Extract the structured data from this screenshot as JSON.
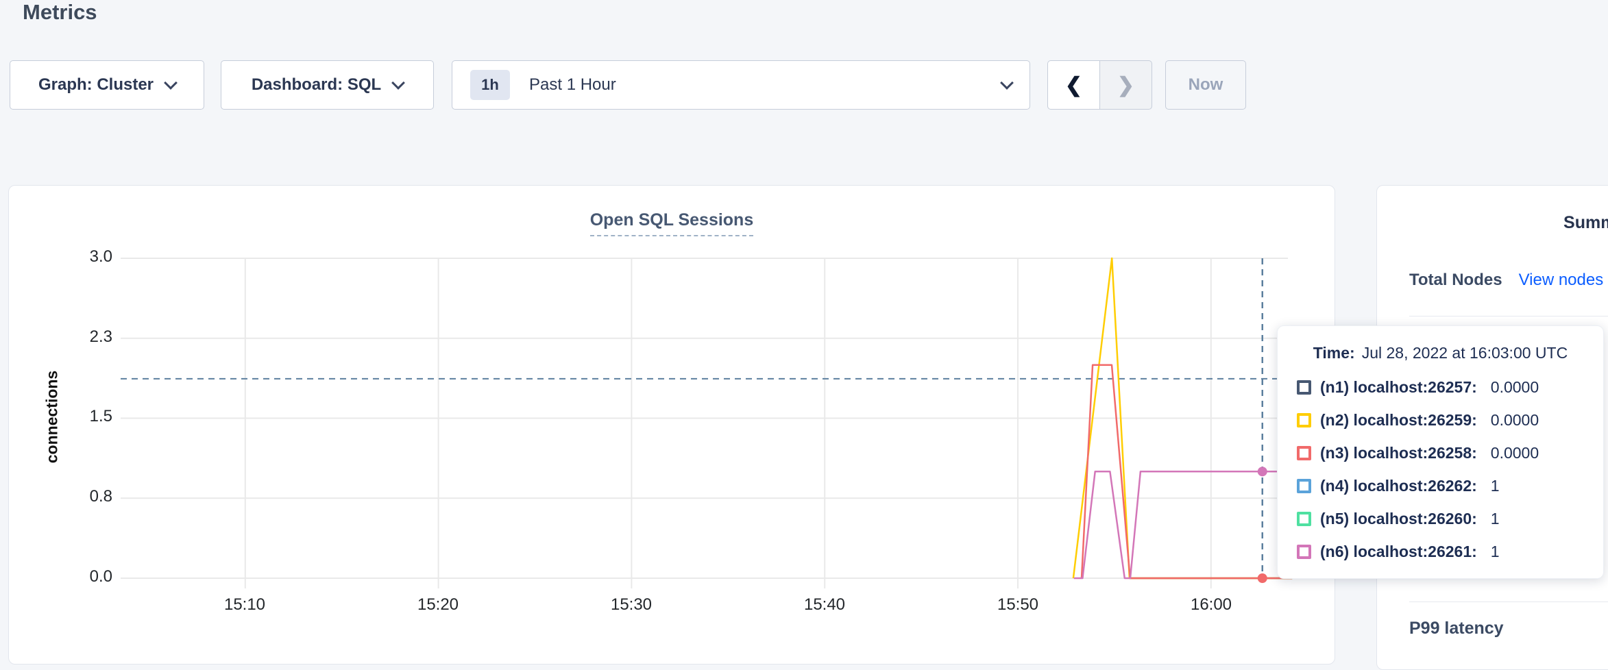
{
  "page": {
    "title": "Metrics"
  },
  "toolbar": {
    "graph_dropdown_label": "Graph: Cluster",
    "dashboard_dropdown_label": "Dashboard: SQL",
    "time_badge": "1h",
    "time_label": "Past 1 Hour",
    "prev_label": "❮",
    "next_label": "❯",
    "now_label": "Now"
  },
  "chart_data": {
    "type": "line",
    "title": "Open SQL Sessions",
    "ylabel": "connections",
    "ylim": [
      0,
      3
    ],
    "y_ticks": [
      "3.0",
      "2.3",
      "1.5",
      "0.8",
      "0.0"
    ],
    "y_gridline_values": [
      3,
      2.25,
      1.5,
      0.75,
      0
    ],
    "x_ticks": [
      "15:10",
      "15:20",
      "15:30",
      "15:40",
      "15:50",
      "16:00"
    ],
    "x_gridline_minutes": [
      10,
      20,
      30,
      40,
      50,
      60
    ],
    "threshold_value": 1.87,
    "crosshair_minute": 62.66,
    "crosshair_time": "16:03:00 UTC",
    "series": [
      {
        "name": "(n1) localhost:26257",
        "color": "#475872",
        "points": [
          [
            55.8,
            0
          ],
          [
            64.2,
            0
          ]
        ]
      },
      {
        "name": "(n2) localhost:26259",
        "color": "#ffcd02",
        "points": [
          [
            52.87,
            0
          ],
          [
            54.87,
            3
          ],
          [
            55.78,
            0
          ],
          [
            64.2,
            0
          ]
        ]
      },
      {
        "name": "(n3) localhost:26258",
        "color": "#f16a6a",
        "points": [
          [
            53.3,
            0
          ],
          [
            53.87,
            2
          ],
          [
            54.86,
            2
          ],
          [
            55.81,
            0
          ],
          [
            64.2,
            0
          ]
        ]
      },
      {
        "name": "(n4) localhost:26262",
        "color": "#5ba3da",
        "points": [
          [
            56.35,
            1
          ],
          [
            64.2,
            1
          ]
        ]
      },
      {
        "name": "(n5) localhost:26260",
        "color": "#4fe0a1",
        "points": [
          [
            56.35,
            1
          ],
          [
            64.2,
            1
          ]
        ]
      },
      {
        "name": "(n6) localhost:26261",
        "color": "#d376b8",
        "points": [
          [
            52.9,
            0
          ],
          [
            53.35,
            0
          ],
          [
            54.0,
            1
          ],
          [
            54.77,
            1
          ],
          [
            55.53,
            0
          ],
          [
            55.82,
            0
          ],
          [
            56.35,
            1
          ],
          [
            64.2,
            1
          ]
        ]
      }
    ],
    "markers": [
      {
        "minute": 62.66,
        "value": 1,
        "color": "#d376b8"
      },
      {
        "minute": 62.66,
        "value": 0,
        "color": "#f16a6a"
      }
    ]
  },
  "tooltip": {
    "time_label": "Time:",
    "time_value": "Jul 28, 2022 at 16:03:00 UTC",
    "rows": [
      {
        "name": "(n1) localhost:26257:",
        "value": "0.0000",
        "color": "#475872"
      },
      {
        "name": "(n2) localhost:26259:",
        "value": "0.0000",
        "color": "#ffcd02"
      },
      {
        "name": "(n3) localhost:26258:",
        "value": "0.0000",
        "color": "#f16a6a"
      },
      {
        "name": "(n4) localhost:26262:",
        "value": "1",
        "color": "#5ba3da"
      },
      {
        "name": "(n5) localhost:26260:",
        "value": "1",
        "color": "#4fe0a1"
      },
      {
        "name": "(n6) localhost:26261:",
        "value": "1",
        "color": "#d376b8"
      }
    ]
  },
  "sidebar": {
    "title": "Summary",
    "total_nodes_label": "Total Nodes",
    "view_nodes_link": "View nodes",
    "p99_label": "P99 latency"
  }
}
